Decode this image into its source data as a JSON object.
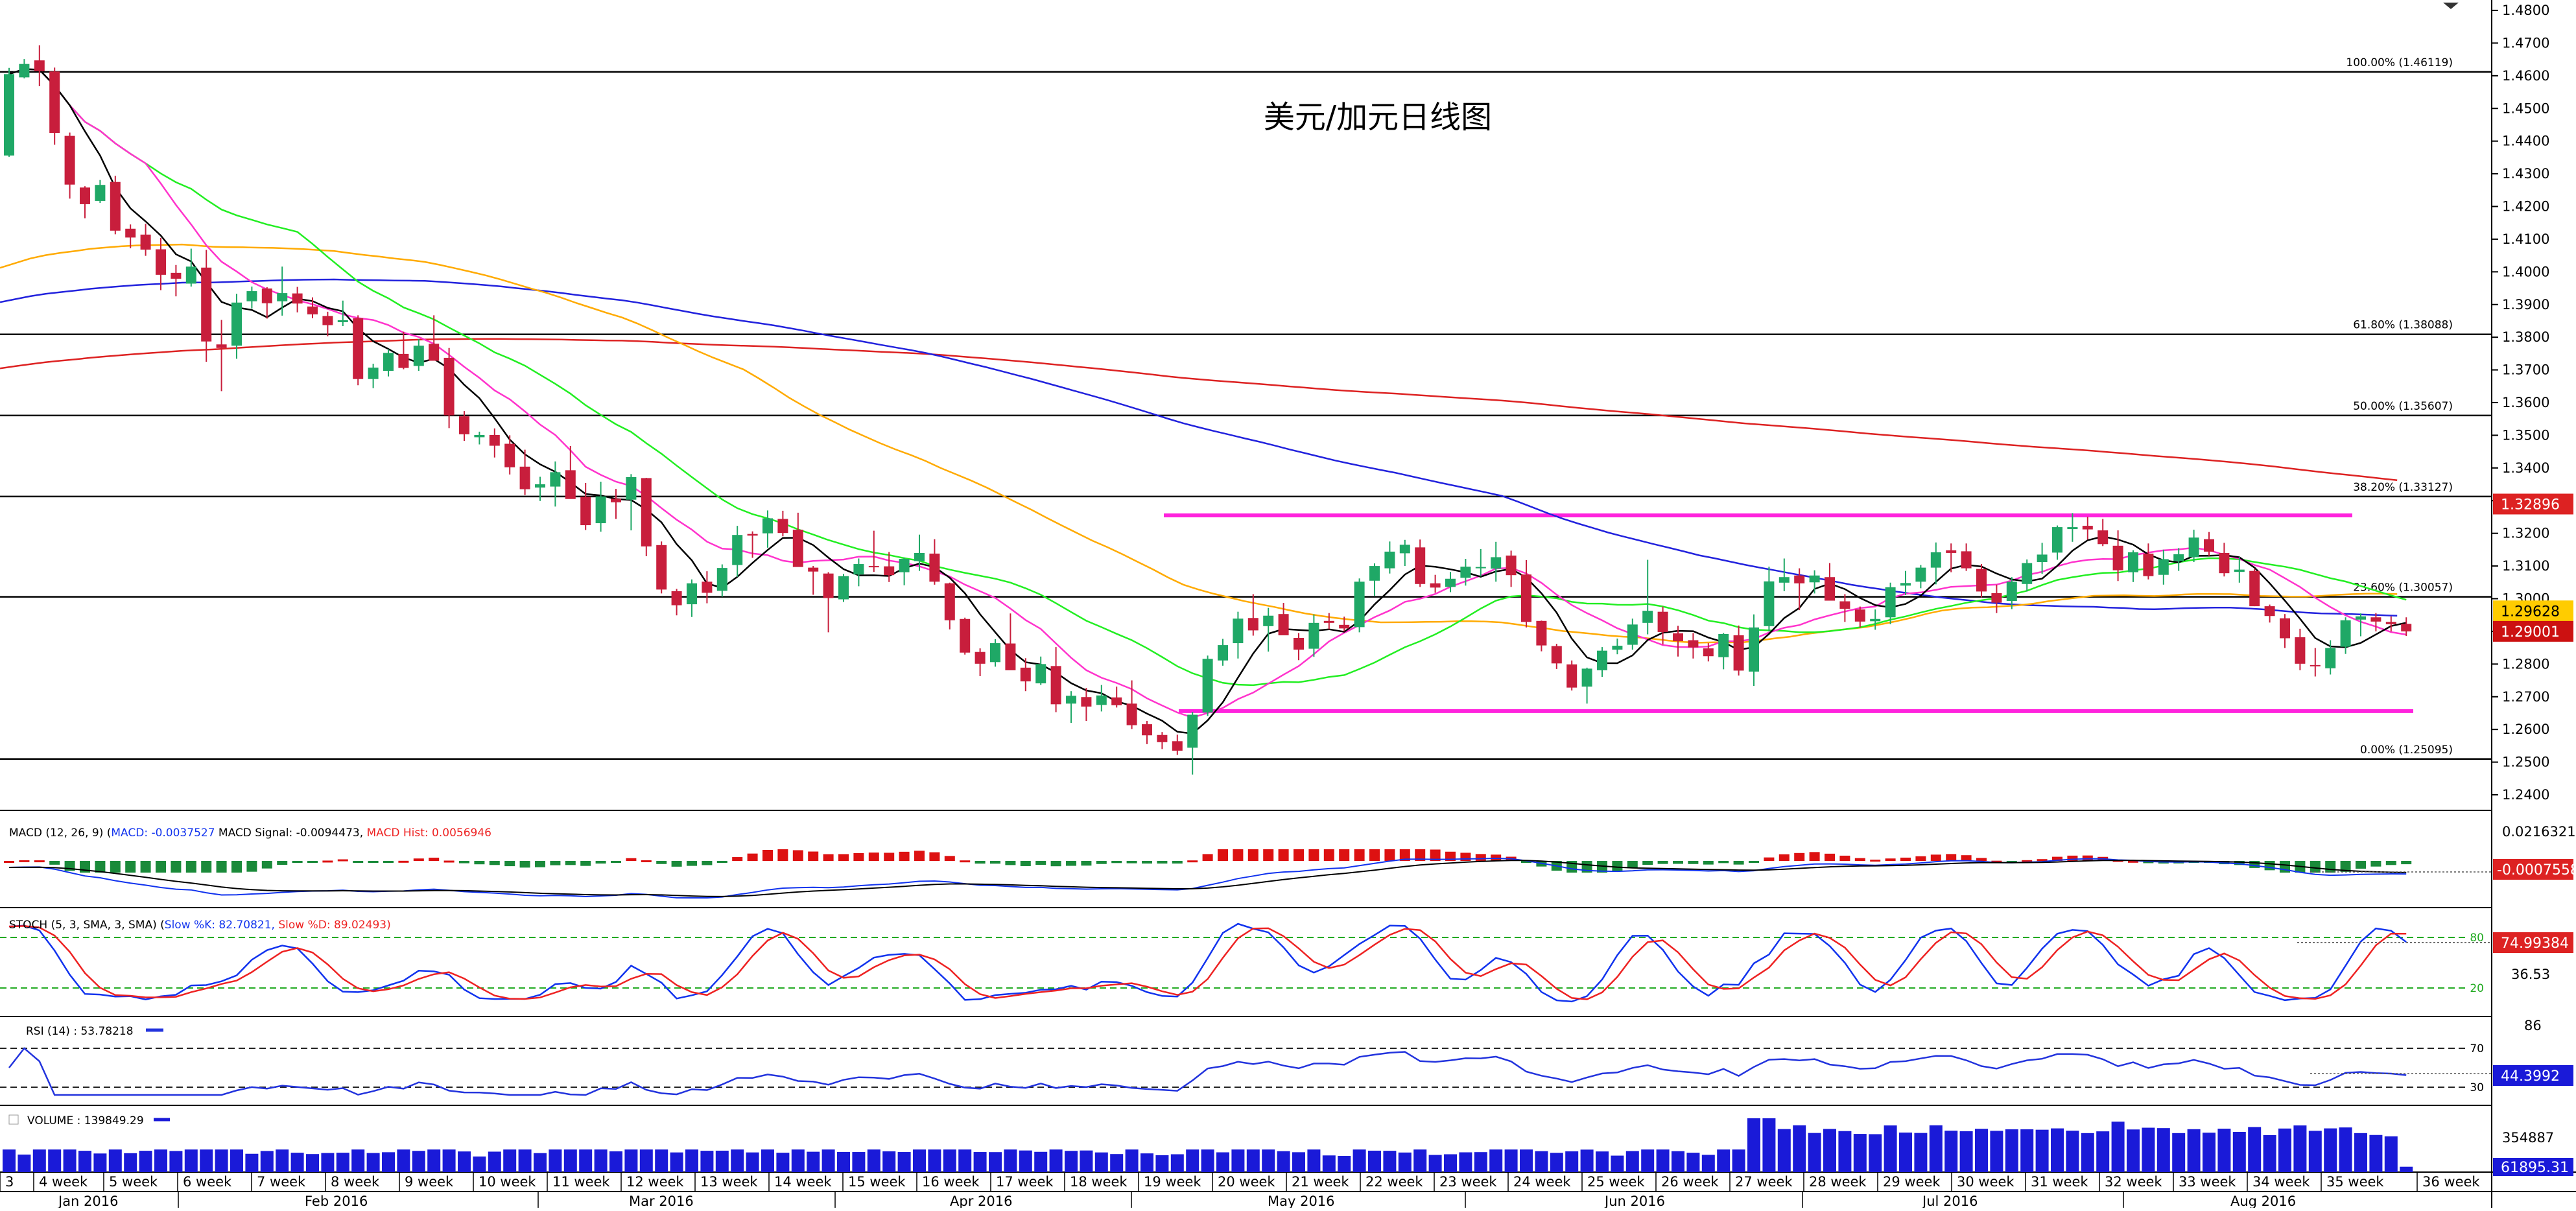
{
  "title": "美元/加元日线图",
  "colors": {
    "up": "#1fa866",
    "down": "#c81e3c",
    "ma5": "#000000",
    "ma10": "#ff33cc",
    "ma20": "#22ee22",
    "ma50": "#ffaa00",
    "ma100": "#2222dd",
    "ma200": "#dd2222",
    "channel": "#ff22dd",
    "fib": "#000000",
    "macd_pos": "#dd1111",
    "macd_neg": "#1a8a3a",
    "stoch_k": "#1133ee",
    "stoch_d": "#ee2222",
    "rsi": "#2233dd",
    "volume": "#1a1ad8"
  },
  "chart_data": [
    {
      "type": "candlestick",
      "panel": "price",
      "y_ticks": [
        "1.4800",
        "1.4700",
        "1.4600",
        "1.4500",
        "1.4400",
        "1.4300",
        "1.4200",
        "1.4100",
        "1.4000",
        "1.3900",
        "1.3800",
        "1.3700",
        "1.3600",
        "1.3500",
        "1.3400",
        "1.3300",
        "1.3200",
        "1.3100",
        "1.3000",
        "1.2900",
        "1.2800",
        "1.2700",
        "1.2600",
        "1.2500",
        "1.2400"
      ],
      "ylim": [
        1.235,
        1.4825
      ],
      "fibonacci": [
        {
          "label": "100.00% (1.46119)",
          "value": 1.46119
        },
        {
          "label": "61.80% (1.38088)",
          "value": 1.38088
        },
        {
          "label": "50.00% (1.35607)",
          "value": 1.35607
        },
        {
          "label": "38.20% (1.33127)",
          "value": 1.33127
        },
        {
          "label": "23.60% (1.30057)",
          "value": 1.30057
        },
        {
          "label": "0.00% (1.25095)",
          "value": 1.25095
        }
      ],
      "price_tags": [
        {
          "text": "1.32896",
          "value": 1.32896,
          "color": "#dd2222",
          "text_color": "#ffffff"
        },
        {
          "text": "1.29628",
          "value": 1.29628,
          "color": "#ffcc00",
          "text_color": "#000000"
        },
        {
          "text": "1.29001",
          "value": 1.29001,
          "color": "#cc1111",
          "text_color": "#ffffff"
        }
      ],
      "channel": {
        "upper": 1.3255,
        "lower": 1.2656
      },
      "candles_ohlc": [
        [
          1.4356,
          1.4624,
          1.4352,
          1.4605
        ],
        [
          1.4595,
          1.4651,
          1.4592,
          1.4636
        ],
        [
          1.4647,
          1.4693,
          1.4568,
          1.4614
        ],
        [
          1.4613,
          1.4625,
          1.4389,
          1.4425
        ],
        [
          1.4416,
          1.4426,
          1.4224,
          1.4267
        ],
        [
          1.4258,
          1.4262,
          1.4164,
          1.4207
        ],
        [
          1.4217,
          1.4281,
          1.4211,
          1.4266
        ],
        [
          1.4275,
          1.4294,
          1.4115,
          1.4126
        ],
        [
          1.4132,
          1.4145,
          1.4072,
          1.4105
        ],
        [
          1.4114,
          1.4147,
          1.4049,
          1.4068
        ],
        [
          1.4069,
          1.4104,
          1.3944,
          1.3991
        ],
        [
          1.3997,
          1.4021,
          1.3925,
          1.3979
        ],
        [
          1.3964,
          1.4071,
          1.3955,
          1.4016
        ],
        [
          1.4013,
          1.4067,
          1.3725,
          1.3787
        ],
        [
          1.3778,
          1.3853,
          1.3635,
          1.3767
        ],
        [
          1.3774,
          1.3933,
          1.3734,
          1.3906
        ],
        [
          1.391,
          1.3955,
          1.3888,
          1.3941
        ],
        [
          1.3949,
          1.3953,
          1.3857,
          1.3904
        ],
        [
          1.391,
          1.4016,
          1.3866,
          1.3935
        ],
        [
          1.3934,
          1.3954,
          1.3876,
          1.3903
        ],
        [
          1.3894,
          1.3922,
          1.3858,
          1.387
        ],
        [
          1.3865,
          1.3878,
          1.3803,
          1.3837
        ],
        [
          1.3846,
          1.3912,
          1.3834,
          1.3852
        ],
        [
          1.3858,
          1.3867,
          1.3653,
          1.3672
        ],
        [
          1.3672,
          1.3719,
          1.3644,
          1.3707
        ],
        [
          1.3697,
          1.3763,
          1.368,
          1.3752
        ],
        [
          1.3749,
          1.3817,
          1.3702,
          1.3706
        ],
        [
          1.3712,
          1.3794,
          1.3697,
          1.3774
        ],
        [
          1.378,
          1.3867,
          1.3738,
          1.3728
        ],
        [
          1.3737,
          1.3767,
          1.3522,
          1.3561
        ],
        [
          1.3558,
          1.3574,
          1.3483,
          1.3503
        ],
        [
          1.3494,
          1.3511,
          1.3472,
          1.3501
        ],
        [
          1.3501,
          1.3521,
          1.3432,
          1.3468
        ],
        [
          1.3474,
          1.35,
          1.338,
          1.3402
        ],
        [
          1.3404,
          1.3456,
          1.3317,
          1.3335
        ],
        [
          1.334,
          1.3373,
          1.3299,
          1.335
        ],
        [
          1.3343,
          1.342,
          1.3282,
          1.3387
        ],
        [
          1.3393,
          1.3467,
          1.3338,
          1.3305
        ],
        [
          1.3312,
          1.3354,
          1.321,
          1.3225
        ],
        [
          1.3231,
          1.3358,
          1.3205,
          1.3313
        ],
        [
          1.3306,
          1.3336,
          1.3244,
          1.3295
        ],
        [
          1.3303,
          1.3381,
          1.3209,
          1.3372
        ],
        [
          1.3369,
          1.337,
          1.313,
          1.316
        ],
        [
          1.3164,
          1.3175,
          1.3016,
          1.3028
        ],
        [
          1.3023,
          1.303,
          1.2949,
          1.298
        ],
        [
          1.2983,
          1.3059,
          1.2944,
          1.3047
        ],
        [
          1.3052,
          1.3084,
          1.2986,
          1.3018
        ],
        [
          1.3024,
          1.3105,
          1.3006,
          1.3094
        ],
        [
          1.3103,
          1.3223,
          1.3067,
          1.3195
        ],
        [
          1.3198,
          1.3206,
          1.3125,
          1.3193
        ],
        [
          1.32,
          1.327,
          1.3156,
          1.3246
        ],
        [
          1.3244,
          1.3269,
          1.3191,
          1.3201
        ],
        [
          1.3211,
          1.3263,
          1.3116,
          1.3097
        ],
        [
          1.3095,
          1.31,
          1.3012,
          1.3083
        ],
        [
          1.3077,
          1.3081,
          1.2897,
          1.3002
        ],
        [
          1.2998,
          1.3076,
          1.299,
          1.3069
        ],
        [
          1.3074,
          1.3123,
          1.3038,
          1.3106
        ],
        [
          1.31,
          1.3208,
          1.3082,
          1.3098
        ],
        [
          1.3099,
          1.3143,
          1.3051,
          1.3072
        ],
        [
          1.3081,
          1.3126,
          1.3041,
          1.3122
        ],
        [
          1.3115,
          1.3196,
          1.3085,
          1.314
        ],
        [
          1.3138,
          1.3182,
          1.3043,
          1.3052
        ],
        [
          1.3047,
          1.3049,
          1.2906,
          1.2934
        ],
        [
          1.2938,
          1.2942,
          1.2829,
          1.2835
        ],
        [
          1.2837,
          1.2848,
          1.2763,
          1.2801
        ],
        [
          1.2806,
          1.2876,
          1.2792,
          1.2864
        ],
        [
          1.2863,
          1.2955,
          1.2798,
          1.2781
        ],
        [
          1.2789,
          1.2818,
          1.2717,
          1.2747
        ],
        [
          1.2741,
          1.2823,
          1.2736,
          1.28
        ],
        [
          1.2794,
          1.2852,
          1.2653,
          1.2677
        ],
        [
          1.2679,
          1.2717,
          1.262,
          1.2703
        ],
        [
          1.2699,
          1.2727,
          1.2626,
          1.267
        ],
        [
          1.2675,
          1.2736,
          1.2655,
          1.2704
        ],
        [
          1.2698,
          1.2731,
          1.2667,
          1.2674
        ],
        [
          1.2679,
          1.275,
          1.2601,
          1.2613
        ],
        [
          1.2616,
          1.2626,
          1.2555,
          1.2582
        ],
        [
          1.2583,
          1.2592,
          1.254,
          1.2561
        ],
        [
          1.2564,
          1.2584,
          1.2522,
          1.2535
        ],
        [
          1.2544,
          1.2654,
          1.2462,
          1.2645
        ],
        [
          1.2652,
          1.2826,
          1.2641,
          1.2816
        ],
        [
          1.2811,
          1.2877,
          1.2795,
          1.2858
        ],
        [
          1.2864,
          1.296,
          1.2817,
          1.2939
        ],
        [
          1.2941,
          1.3014,
          1.2887,
          1.2903
        ],
        [
          1.2916,
          1.2972,
          1.2838,
          1.2948
        ],
        [
          1.2953,
          1.2987,
          1.2893,
          1.2888
        ],
        [
          1.288,
          1.2895,
          1.2812,
          1.2844
        ],
        [
          1.2847,
          1.2952,
          1.2822,
          1.2926
        ],
        [
          1.2932,
          1.2956,
          1.2906,
          1.2926
        ],
        [
          1.292,
          1.2945,
          1.29,
          1.2909
        ],
        [
          1.2913,
          1.3062,
          1.2897,
          1.3052
        ],
        [
          1.3055,
          1.3108,
          1.3009,
          1.31
        ],
        [
          1.3093,
          1.3175,
          1.3077,
          1.3144
        ],
        [
          1.3139,
          1.318,
          1.31,
          1.3165
        ],
        [
          1.3157,
          1.3181,
          1.3036,
          1.3045
        ],
        [
          1.3047,
          1.3073,
          1.3018,
          1.3034
        ],
        [
          1.3036,
          1.3082,
          1.302,
          1.3061
        ],
        [
          1.3064,
          1.3122,
          1.304,
          1.3098
        ],
        [
          1.3094,
          1.3152,
          1.3068,
          1.3097
        ],
        [
          1.3092,
          1.3174,
          1.3052,
          1.3127
        ],
        [
          1.3132,
          1.3147,
          1.3036,
          1.3072
        ],
        [
          1.3074,
          1.3118,
          1.2912,
          1.2929
        ],
        [
          1.2932,
          1.2933,
          1.2839,
          1.2857
        ],
        [
          1.2855,
          1.2862,
          1.2785,
          1.2802
        ],
        [
          1.2799,
          1.2811,
          1.2719,
          1.2728
        ],
        [
          1.2731,
          1.2789,
          1.2679,
          1.2786
        ],
        [
          1.2781,
          1.2852,
          1.2761,
          1.2841
        ],
        [
          1.2844,
          1.2878,
          1.283,
          1.2856
        ],
        [
          1.2859,
          1.2939,
          1.2844,
          1.2921
        ],
        [
          1.2926,
          1.3119,
          1.2891,
          1.2963
        ],
        [
          1.296,
          1.2976,
          1.286,
          1.2898
        ],
        [
          1.2894,
          1.2917,
          1.2823,
          1.287
        ],
        [
          1.2873,
          1.2895,
          1.2817,
          1.2851
        ],
        [
          1.2848,
          1.2864,
          1.2808,
          1.2824
        ],
        [
          1.2821,
          1.2895,
          1.2784,
          1.2892
        ],
        [
          1.2888,
          1.2918,
          1.2765,
          1.278
        ],
        [
          1.2777,
          1.2952,
          1.2733,
          1.2912
        ],
        [
          1.2916,
          1.3098,
          1.29,
          1.3053
        ],
        [
          1.3049,
          1.3123,
          1.3023,
          1.3066
        ],
        [
          1.3071,
          1.3093,
          1.2965,
          1.3047
        ],
        [
          1.305,
          1.3087,
          1.3016,
          1.3071
        ],
        [
          1.3066,
          1.3109,
          1.3008,
          1.2994
        ],
        [
          1.2992,
          1.3014,
          1.2929,
          1.2969
        ],
        [
          1.2967,
          1.2976,
          1.2912,
          1.293
        ],
        [
          1.2931,
          1.2967,
          1.2905,
          1.2938
        ],
        [
          1.2943,
          1.3049,
          1.2922,
          1.3035
        ],
        [
          1.304,
          1.3085,
          1.3011,
          1.3048
        ],
        [
          1.3052,
          1.3103,
          1.3032,
          1.3095
        ],
        [
          1.3095,
          1.3172,
          1.3044,
          1.3142
        ],
        [
          1.3148,
          1.3169,
          1.3081,
          1.314
        ],
        [
          1.3145,
          1.3169,
          1.3085,
          1.3093
        ],
        [
          1.3091,
          1.3106,
          1.3004,
          1.3022
        ],
        [
          1.3017,
          1.3043,
          1.2956,
          1.2988
        ],
        [
          1.2993,
          1.3066,
          1.2968,
          1.3052
        ],
        [
          1.3045,
          1.312,
          1.3022,
          1.3109
        ],
        [
          1.3112,
          1.3171,
          1.3076,
          1.3135
        ],
        [
          1.3141,
          1.3224,
          1.3119,
          1.3219
        ],
        [
          1.3213,
          1.3262,
          1.3174,
          1.3219
        ],
        [
          1.3223,
          1.3251,
          1.3181,
          1.3212
        ],
        [
          1.3209,
          1.3244,
          1.3161,
          1.3167
        ],
        [
          1.3162,
          1.3209,
          1.3054,
          1.3087
        ],
        [
          1.3081,
          1.3148,
          1.3051,
          1.3142
        ],
        [
          1.3138,
          1.3169,
          1.3059,
          1.3069
        ],
        [
          1.3073,
          1.315,
          1.3043,
          1.3121
        ],
        [
          1.3115,
          1.3155,
          1.3085,
          1.3136
        ],
        [
          1.3127,
          1.3211,
          1.3112,
          1.3187
        ],
        [
          1.3182,
          1.3204,
          1.3131,
          1.3144
        ],
        [
          1.314,
          1.3171,
          1.3068,
          1.3078
        ],
        [
          1.3082,
          1.3128,
          1.3049,
          1.3089
        ],
        [
          1.3085,
          1.3092,
          1.2977,
          1.2977
        ],
        [
          1.2977,
          1.2982,
          1.2927,
          1.2947
        ],
        [
          1.294,
          1.2953,
          1.2849,
          1.2879
        ],
        [
          1.2882,
          1.2908,
          1.2781,
          1.2801
        ],
        [
          1.2797,
          1.2849,
          1.2762,
          1.2794
        ],
        [
          1.2787,
          1.2873,
          1.2768,
          1.2849
        ],
        [
          1.2853,
          1.2943,
          1.2831,
          1.2934
        ],
        [
          1.2936,
          1.2955,
          1.2885,
          1.2946
        ],
        [
          1.2943,
          1.2956,
          1.29,
          1.293
        ],
        [
          1.2929,
          1.2946,
          1.29,
          1.2922
        ],
        [
          1.2923,
          1.2943,
          1.2886,
          1.29
        ]
      ],
      "x_week_labels": [
        "3",
        "4 week",
        "5 week",
        "6 week",
        "7 week",
        "8 week",
        "9 week",
        "10 week",
        "11 week",
        "12 week",
        "13 week",
        "14 week",
        "15 week",
        "16 week",
        "17 week",
        "18 week",
        "19 week",
        "20 week",
        "21 week",
        "22 week",
        "23 week",
        "24 week",
        "25 week",
        "26 week",
        "27 week",
        "28 week",
        "29 week",
        "30 week",
        "31 week",
        "32 week",
        "33 week",
        "34 week",
        "35 week",
        "36 week"
      ],
      "x_month_labels": [
        "Jan 2016",
        "Feb 2016",
        "Mar 2016",
        "Apr 2016",
        "May 2016",
        "Jun 2016",
        "Jul 2016",
        "Aug 2016"
      ]
    },
    {
      "type": "bar",
      "panel": "macd",
      "legend": "MACD (12, 26, 9)",
      "legend_parts": [
        {
          "text": "MACD: -0.0037527",
          "color": "#1133ee"
        },
        {
          "text": " MACD Signal: -0.0094473,",
          "color": "#000000"
        },
        {
          "text": " MACD Hist: 0.0056946",
          "color": "#ee2222"
        }
      ],
      "y_ticks": [
        "0.0216321"
      ],
      "tag": {
        "text": "-0.0007558",
        "color": "#dd2222",
        "text_color": "#ffffff"
      }
    },
    {
      "type": "line",
      "panel": "stoch",
      "legend": "STOCH (5, 3, SMA, 3, SMA)",
      "legend_parts": [
        {
          "text": "Slow %K: 82.70821,",
          "color": "#1133ee"
        },
        {
          "text": " Slow %D: 89.02493)",
          "color": "#ee2222"
        }
      ],
      "levels": {
        "upper": 80,
        "lower": 20,
        "upper_label": "80",
        "lower_label": "20"
      },
      "y_ticks": [
        "36.53"
      ],
      "tag": {
        "text": "74.99384",
        "color": "#dd2222",
        "text_color": "#ffffff"
      }
    },
    {
      "type": "line",
      "panel": "rsi",
      "legend": "RSI (14) : 53.78218",
      "levels": {
        "upper": 70,
        "lower": 30,
        "upper_label": "70",
        "lower_label": "30"
      },
      "y_ticks": [
        "86"
      ],
      "tag": {
        "text": "44.3992",
        "color": "#1a1ad8",
        "text_color": "#ffffff"
      }
    },
    {
      "type": "bar",
      "panel": "volume",
      "legend": "VOLUME : 139849.29",
      "y_ticks": [
        "354887"
      ],
      "tag": {
        "text": "61895.31",
        "color": "#1a1ad8",
        "text_color": "#ffffff"
      }
    }
  ]
}
